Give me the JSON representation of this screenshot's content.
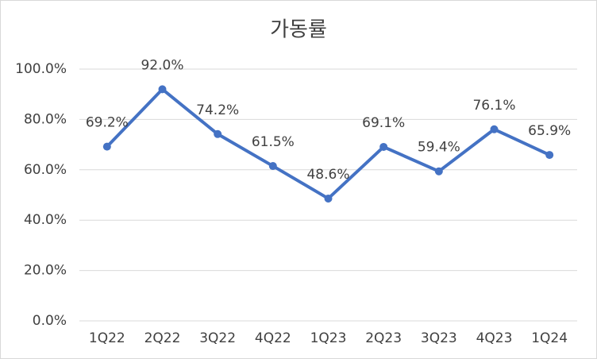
{
  "chart_data": {
    "type": "line",
    "title": "가동률",
    "categories": [
      "1Q22",
      "2Q22",
      "3Q22",
      "4Q22",
      "1Q23",
      "2Q23",
      "3Q23",
      "4Q23",
      "1Q24"
    ],
    "values": [
      69.2,
      92.0,
      74.2,
      61.5,
      48.6,
      69.1,
      59.4,
      76.1,
      65.9
    ],
    "value_labels": [
      "69.2%",
      "92.0%",
      "74.2%",
      "61.5%",
      "48.6%",
      "69.1%",
      "59.4%",
      "76.1%",
      "65.9%"
    ],
    "color": "#4472c4",
    "ylim": [
      0,
      100
    ],
    "yticks": [
      {
        "value": 0,
        "label": "0.0%"
      },
      {
        "value": 20,
        "label": "20.0%"
      },
      {
        "value": 40,
        "label": "40.0%"
      },
      {
        "value": 60,
        "label": "60.0%"
      },
      {
        "value": 80,
        "label": "80.0%"
      },
      {
        "value": 100,
        "label": "100.0%"
      }
    ],
    "grid": true
  }
}
